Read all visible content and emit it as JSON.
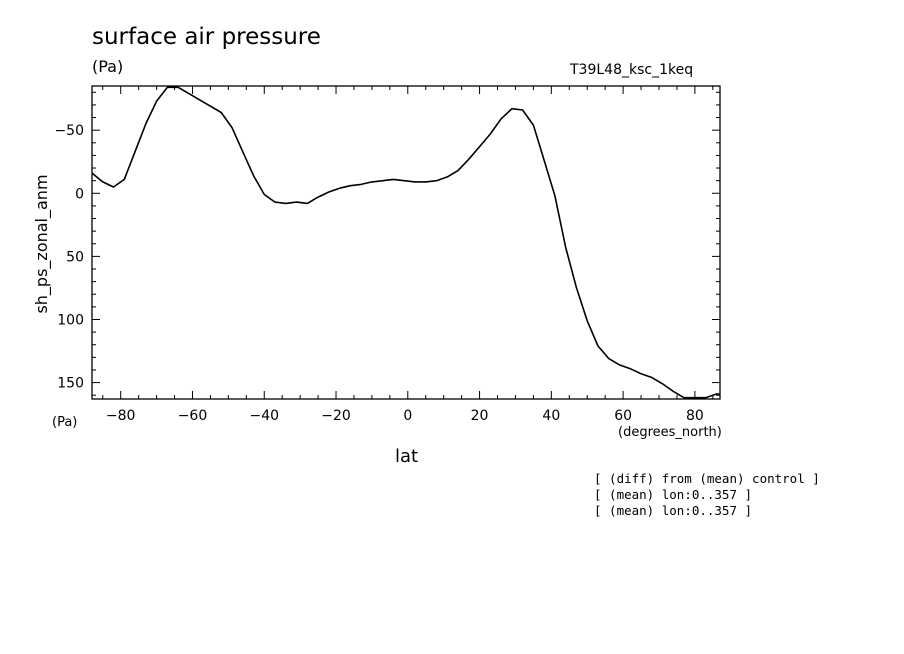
{
  "chart_data": {
    "type": "line",
    "title": "surface air pressure",
    "units": "(Pa)",
    "run_label": "T39L48_ksc_1keq",
    "xlabel": "lat",
    "x_units": "(degrees_north)",
    "ylabel": "sh_ps_zonal_anm",
    "y_units": "(Pa)",
    "xlim": [
      -88,
      87
    ],
    "ylim": [
      -85,
      163
    ],
    "y_inverted": true,
    "x_ticks": [
      -80,
      -60,
      -40,
      -20,
      0,
      20,
      40,
      60,
      80
    ],
    "x_tick_labels": [
      "−80",
      "−60",
      "−40",
      "−20",
      "0",
      "20",
      "40",
      "60",
      "80"
    ],
    "y_ticks": [
      -50,
      0,
      50,
      100,
      150
    ],
    "y_tick_labels": [
      "−50",
      "0",
      "50",
      "100",
      "150"
    ],
    "grid": false,
    "series": [
      {
        "x": [
          -88,
          -85,
          -82,
          -79,
          -76,
          -73,
          -70,
          -67,
          -64,
          -61,
          -58,
          -55,
          -52,
          -49,
          -46,
          -43,
          -40,
          -37,
          -34,
          -31,
          -28,
          -25,
          -22,
          -19,
          -16,
          -13,
          -10,
          -7,
          -4,
          -1,
          2,
          5,
          8,
          11,
          14,
          17,
          20,
          23,
          26,
          29,
          32,
          35,
          38,
          41,
          44,
          47,
          50,
          53,
          56,
          59,
          62,
          65,
          68,
          71,
          74,
          77,
          80,
          83,
          86,
          87
        ],
        "y": [
          -16,
          -9,
          -5,
          -11,
          -33,
          -55,
          -73,
          -84,
          -84,
          -79,
          -74,
          -69,
          -64,
          -52,
          -33,
          -14,
          1,
          7,
          8,
          7,
          8,
          3,
          -1,
          -4,
          -6,
          -7,
          -9,
          -10,
          -11,
          -10,
          -9,
          -9,
          -10,
          -13,
          -18,
          -27,
          -37,
          -47,
          -59,
          -67,
          -66,
          -54,
          -26,
          2,
          43,
          75,
          101,
          121,
          131,
          136,
          139,
          143,
          146,
          151,
          157,
          162,
          162,
          162,
          159,
          159
        ]
      }
    ],
    "notes": [
      "[ (diff) from (mean) control ]",
      "[ (mean) lon:0..357 ]",
      "[ (mean) lon:0..357 ]"
    ]
  }
}
